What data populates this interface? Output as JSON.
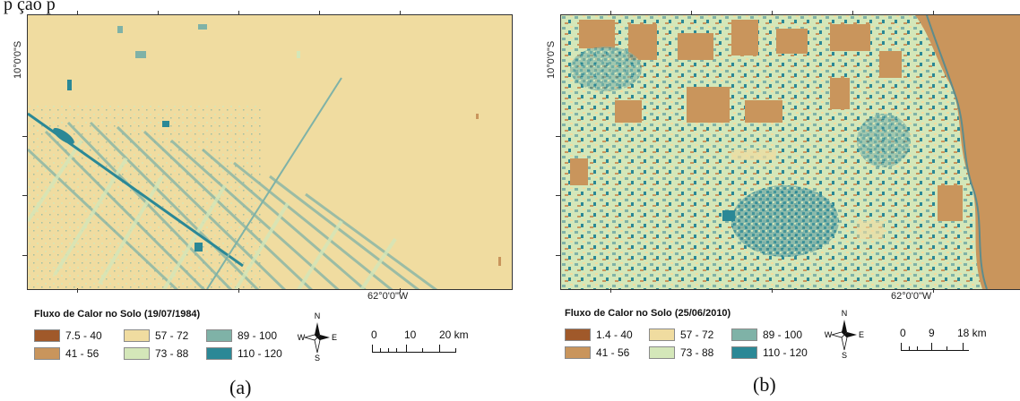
{
  "top_text": "p                                          ção  p",
  "colors": {
    "c1": "#a0592a",
    "c2": "#c9955c",
    "c3": "#f0dca0",
    "c4": "#d4e7b9",
    "c5": "#7fb2a7",
    "c6": "#2b8896"
  },
  "panels": [
    {
      "panel_label": "(a)",
      "lat_label": "10°0'0\"S",
      "lon_label": "62°0'0\"W",
      "legend_title": "Fluxo de Calor no Solo (19/07/1984)",
      "legend": [
        {
          "label": "7.5 - 40",
          "color": "#a0592a"
        },
        {
          "label": "41 - 56",
          "color": "#c9955c"
        },
        {
          "label": "57 - 72",
          "color": "#f0dca0"
        },
        {
          "label": "73 - 88",
          "color": "#d4e7b9"
        },
        {
          "label": "89 - 100",
          "color": "#7fb2a7"
        },
        {
          "label": "110 - 120",
          "color": "#2b8896"
        }
      ],
      "compass": {
        "n": "N",
        "s": "S",
        "e": "E",
        "w": "W"
      },
      "scale": {
        "ticks": [
          "0",
          "10",
          "20 km"
        ]
      }
    },
    {
      "panel_label": "(b)",
      "lat_label": "10°0'0\"S",
      "lon_label": "62°0'0\"W",
      "legend_title": "Fluxo de Calor no Solo (25/06/2010)",
      "legend": [
        {
          "label": "1.4 - 40",
          "color": "#a0592a"
        },
        {
          "label": "41 - 56",
          "color": "#c9955c"
        },
        {
          "label": "57 - 72",
          "color": "#f0dca0"
        },
        {
          "label": "73 - 88",
          "color": "#d4e7b9"
        },
        {
          "label": "89 - 100",
          "color": "#7fb2a7"
        },
        {
          "label": "110 - 120",
          "color": "#2b8896"
        }
      ],
      "compass": {
        "n": "N",
        "s": "S",
        "e": "E",
        "w": "W"
      },
      "scale": {
        "ticks": [
          "0",
          "9",
          "18 km"
        ]
      }
    }
  ]
}
